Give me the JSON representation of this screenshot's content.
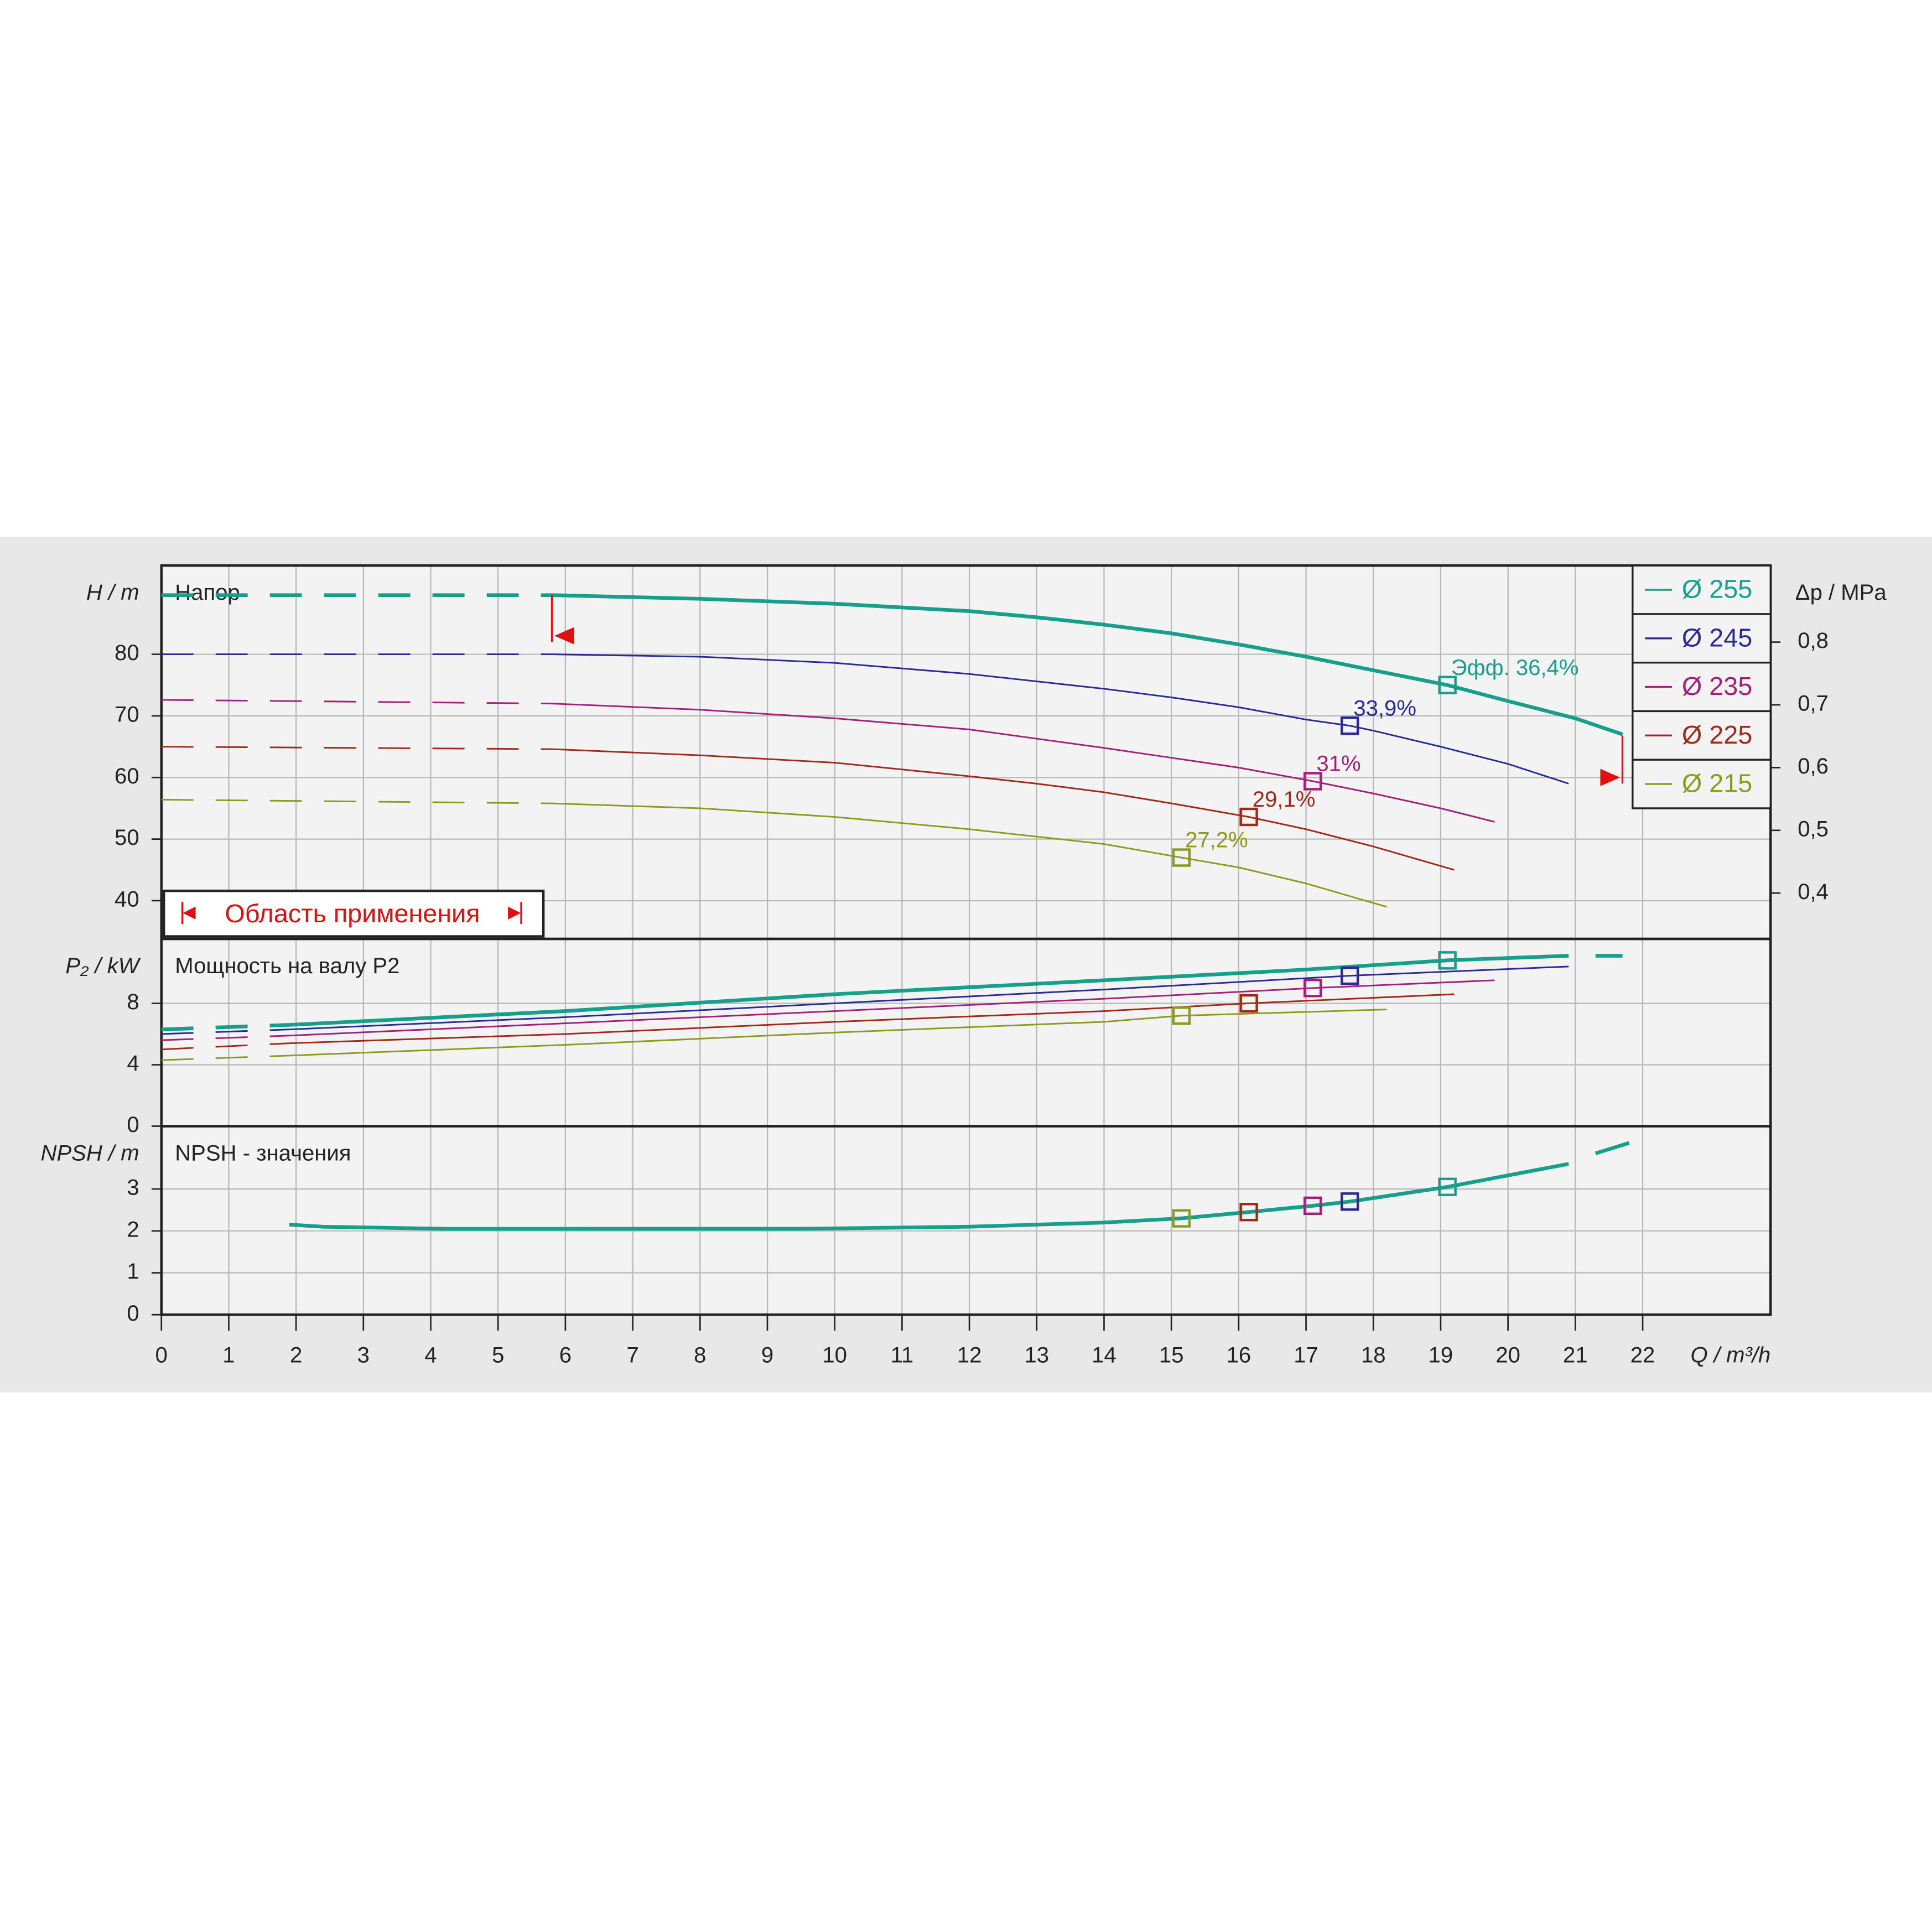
{
  "chart_data": [
    {
      "type": "line",
      "panel_label": "Напор",
      "ylabel": "H / m",
      "y2label": "Δp / MPa",
      "ylim": [
        33.8,
        94.4
      ],
      "yticks": [
        40,
        50,
        60,
        70,
        80
      ],
      "y2lim": [
        0.327,
        0.922
      ],
      "y2ticks": [
        {
          "value": 0.4,
          "label": "0,4"
        },
        {
          "value": 0.5,
          "label": "0,5"
        },
        {
          "value": 0.6,
          "label": "0,6"
        },
        {
          "value": 0.7,
          "label": "0,7"
        },
        {
          "value": 0.8,
          "label": "0,8"
        }
      ],
      "grid": true,
      "legend": "upper right",
      "dashed_until": 5.8,
      "range_label": "Область применения",
      "range_limits": [
        5.8,
        21.7
      ],
      "series": [
        {
          "name": "Ø 255",
          "color": "#16a08a",
          "width": 3,
          "x": [
            0,
            5.8,
            8,
            10,
            12,
            13,
            14,
            15,
            16,
            17,
            18,
            19.1,
            20,
            21,
            21.7
          ],
          "values": [
            89.6,
            89.6,
            89,
            88.2,
            87,
            86,
            84.8,
            83.4,
            81.6,
            79.6,
            77.4,
            75,
            72.4,
            69.6,
            67
          ],
          "duty_point": {
            "x": 19.1,
            "y": 75,
            "label": "Эфф.  36,4%"
          }
        },
        {
          "name": "Ø 245",
          "color": "#2a2a96",
          "width": 1.3,
          "x": [
            0,
            5.8,
            8,
            10,
            12,
            14,
            15,
            16,
            17,
            17.65,
            18,
            19,
            20,
            20.9
          ],
          "values": [
            80,
            80,
            79.6,
            78.6,
            76.8,
            74.4,
            73,
            71.4,
            69.4,
            68.4,
            67.6,
            65,
            62.2,
            59
          ],
          "duty_point": {
            "x": 17.65,
            "y": 68.4,
            "label": "33,9%"
          }
        },
        {
          "name": "Ø 235",
          "color": "#a0207a",
          "width": 1.3,
          "x": [
            0,
            5.8,
            8,
            10,
            12,
            14,
            15,
            16,
            17.1,
            18,
            19,
            19.8
          ],
          "values": [
            72.6,
            72,
            71,
            69.6,
            67.8,
            64.8,
            63.2,
            61.6,
            59.4,
            57.4,
            55,
            52.8
          ],
          "duty_point": {
            "x": 17.1,
            "y": 59.4,
            "label": "31%"
          }
        },
        {
          "name": "Ø 225",
          "color": "#a02a1a",
          "width": 1.3,
          "x": [
            0,
            5.8,
            8,
            10,
            12,
            13,
            14,
            15,
            16.15,
            17,
            18,
            19.2
          ],
          "values": [
            65,
            64.6,
            63.6,
            62.4,
            60.2,
            59,
            57.6,
            55.8,
            53.6,
            51.6,
            48.8,
            45
          ],
          "duty_point": {
            "x": 16.15,
            "y": 53.6,
            "label": "29,1%"
          }
        },
        {
          "name": "Ø 215",
          "color": "#8c9c1a",
          "width": 1.3,
          "x": [
            0,
            5.8,
            8,
            10,
            12,
            14,
            15.15,
            16,
            17,
            18.2
          ],
          "values": [
            56.4,
            55.8,
            55,
            53.6,
            51.6,
            49.2,
            47,
            45.4,
            42.8,
            39
          ],
          "duty_point": {
            "x": 15.15,
            "y": 47,
            "label": "27,2%"
          }
        }
      ]
    },
    {
      "type": "line",
      "panel_label": "Мощность на валу P2",
      "ylabel": "P₂ / kW",
      "ylim": [
        0,
        12.2
      ],
      "yticks": [
        0,
        4,
        8
      ],
      "grid": true,
      "dashed_until": 1.9,
      "series": [
        {
          "color": "#16a08a",
          "width": 3,
          "x": [
            0,
            1.9,
            6,
            10,
            14,
            17,
            19.1,
            20.9,
            21.1,
            21.3,
            21.7
          ],
          "values": [
            6.3,
            6.6,
            7.5,
            8.6,
            9.5,
            10.2,
            10.8,
            11.1,
            null,
            11.1,
            11.1
          ],
          "duty_point": {
            "x": 19.1,
            "y": 10.8
          }
        },
        {
          "color": "#2a2a96",
          "width": 1.3,
          "x": [
            0,
            1.9,
            6,
            10,
            14,
            17.65,
            20.9
          ],
          "values": [
            6.0,
            6.3,
            7.1,
            8.0,
            8.9,
            9.8,
            10.4
          ],
          "duty_point": {
            "x": 17.65,
            "y": 9.8
          }
        },
        {
          "color": "#a0207a",
          "width": 1.3,
          "x": [
            0,
            1.9,
            6,
            10,
            14,
            17.1,
            19.8
          ],
          "values": [
            5.6,
            5.9,
            6.7,
            7.5,
            8.3,
            9.0,
            9.5
          ],
          "duty_point": {
            "x": 17.1,
            "y": 9.0
          }
        },
        {
          "color": "#a02a1a",
          "width": 1.3,
          "x": [
            0,
            1.9,
            6,
            10,
            14,
            16.15,
            19.2
          ],
          "values": [
            5.0,
            5.4,
            6.0,
            6.8,
            7.5,
            8.0,
            8.6
          ],
          "duty_point": {
            "x": 16.15,
            "y": 8.0
          }
        },
        {
          "color": "#8c9c1a",
          "width": 1.3,
          "x": [
            0,
            1.9,
            6,
            10,
            14,
            15.15,
            18.2
          ],
          "values": [
            4.3,
            4.6,
            5.3,
            6.1,
            6.8,
            7.2,
            7.6
          ],
          "duty_point": {
            "x": 15.15,
            "y": 7.2
          }
        }
      ]
    },
    {
      "type": "line",
      "panel_label": "NPSH - значения",
      "ylabel": "NPSH / m",
      "ylim": [
        0,
        4.5
      ],
      "yticks": [
        0,
        1,
        2,
        3
      ],
      "grid": true,
      "xlabel": "Q / m³/h",
      "xlim": [
        0,
        23.9
      ],
      "xticks": [
        0,
        1,
        2,
        3,
        4,
        5,
        6,
        7,
        8,
        9,
        10,
        11,
        12,
        13,
        14,
        15,
        16,
        17,
        18,
        19,
        20,
        21,
        22
      ],
      "series": [
        {
          "color": "#16a08a",
          "width": 3,
          "x": [
            1.9,
            2.4,
            4.2,
            9.5,
            12,
            14,
            15.15,
            16.15,
            17.1,
            17.65,
            19.1,
            20.9,
            21.1,
            21.3,
            21.8
          ],
          "values": [
            2.15,
            2.1,
            2.05,
            2.05,
            2.1,
            2.2,
            2.3,
            2.45,
            2.6,
            2.7,
            3.05,
            3.6,
            null,
            3.85,
            4.1
          ],
          "markers": [
            {
              "x": 15.15,
              "y": 2.3,
              "color": "#8c9c1a"
            },
            {
              "x": 16.15,
              "y": 2.45,
              "color": "#a02a1a"
            },
            {
              "x": 17.1,
              "y": 2.6,
              "color": "#a0207a"
            },
            {
              "x": 17.65,
              "y": 2.7,
              "color": "#2a2a96"
            },
            {
              "x": 19.1,
              "y": 3.05,
              "color": "#16a08a"
            }
          ]
        }
      ]
    }
  ]
}
